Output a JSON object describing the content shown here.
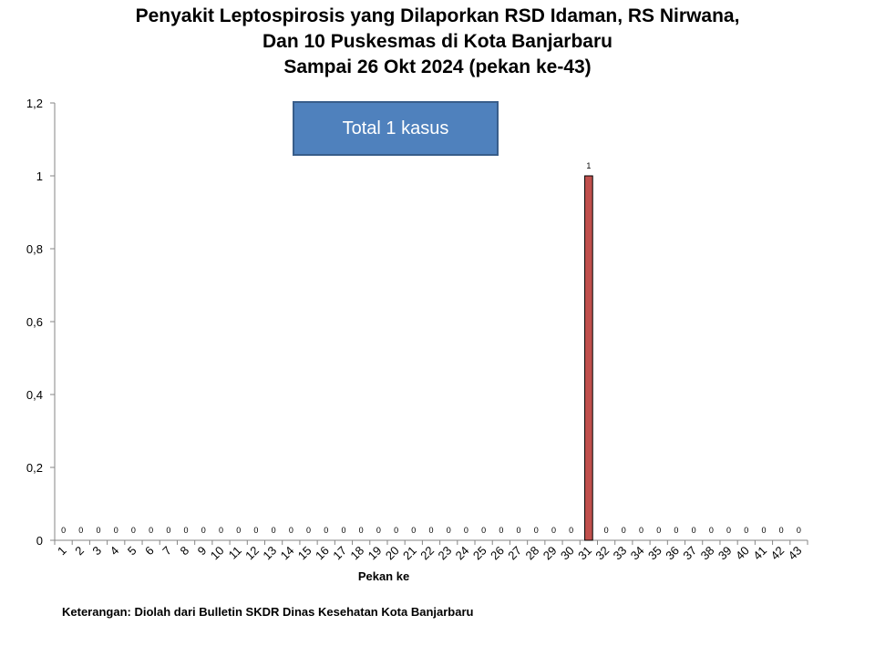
{
  "chart_data": {
    "type": "bar",
    "title_lines": [
      "Penyakit Leptospirosis yang Dilaporkan RSD Idaman, RS Nirwana,",
      "Dan 10 Puskesmas di Kota Banjarbaru",
      "Sampai 26 Okt 2024 (pekan ke-43)"
    ],
    "xlabel": "Pekan ke",
    "ylabel": "",
    "ylim": [
      0,
      1.2
    ],
    "yticks": [
      "0",
      "0,2",
      "0,4",
      "0,6",
      "0,8",
      "1",
      "1,2"
    ],
    "categories": [
      "1",
      "2",
      "3",
      "4",
      "5",
      "6",
      "7",
      "8",
      "9",
      "10",
      "11",
      "12",
      "13",
      "14",
      "15",
      "16",
      "17",
      "18",
      "19",
      "20",
      "21",
      "22",
      "23",
      "24",
      "25",
      "26",
      "27",
      "28",
      "29",
      "30",
      "31",
      "32",
      "33",
      "34",
      "35",
      "36",
      "37",
      "38",
      "39",
      "40",
      "41",
      "42",
      "43"
    ],
    "values": [
      0,
      0,
      0,
      0,
      0,
      0,
      0,
      0,
      0,
      0,
      0,
      0,
      0,
      0,
      0,
      0,
      0,
      0,
      0,
      0,
      0,
      0,
      0,
      0,
      0,
      0,
      0,
      0,
      0,
      0,
      1,
      0,
      0,
      0,
      0,
      0,
      0,
      0,
      0,
      0,
      0,
      0,
      0
    ],
    "data_labels": [
      "0",
      "0",
      "0",
      "0",
      "0",
      "0",
      "0",
      "0",
      "0",
      "0",
      "0",
      "0",
      "0",
      "0",
      "0",
      "0",
      "0",
      "0",
      "0",
      "0",
      "0",
      "0",
      "0",
      "0",
      "0",
      "0",
      "0",
      "0",
      "0",
      "0",
      "1",
      "0",
      "0",
      "0",
      "0",
      "0",
      "0",
      "0",
      "0",
      "0",
      "0",
      "0",
      "0"
    ],
    "bar_color": "#c0504d",
    "grid": false,
    "legend": "none"
  },
  "annotation": {
    "total_text": "Total 1 kasus",
    "box_color": "#4f81bd"
  },
  "footnote": "Keterangan: Diolah dari Bulletin SKDR Dinas Kesehatan Kota Banjarbaru"
}
